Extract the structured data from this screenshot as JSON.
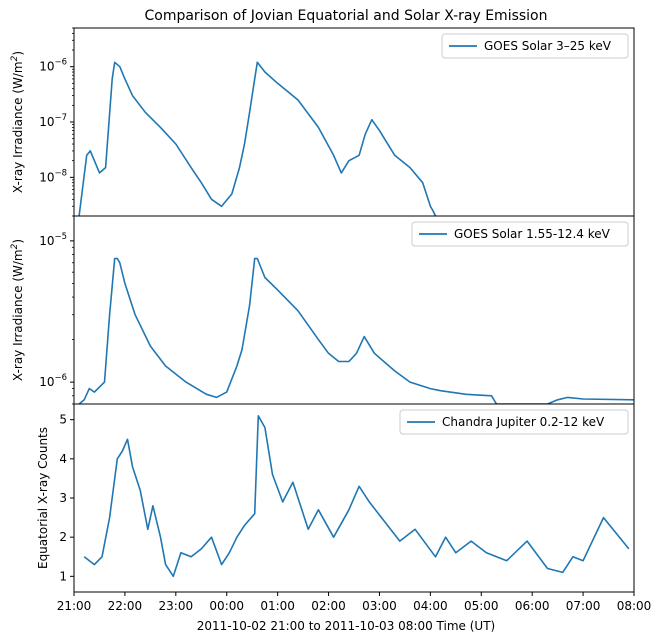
{
  "title": "Comparison of Jovian Equatorial and Solar X-ray Emission",
  "x_axis_label": "2011-10-02 21:00 to 2011-10-03 08:00 Time (UT)",
  "x_tick_labels": [
    "21:00",
    "22:00",
    "23:00",
    "00:00",
    "01:00",
    "02:00",
    "03:00",
    "04:00",
    "05:00",
    "06:00",
    "07:00",
    "08:00"
  ],
  "line_color": "#1f77b4",
  "chart_data": [
    {
      "type": "line",
      "panel": "top",
      "series_name": "GOES Solar 3–25 keV",
      "ylabel_text": "X-ray Irradiance (W/m",
      "ylabel_sup": "2",
      "ylabel_close": ")",
      "yscale": "log",
      "ylim": [
        2e-09,
        5e-06
      ],
      "yticks": [
        1e-08,
        1e-07,
        1e-06
      ],
      "ytick_labels": [
        {
          "base": "10",
          "exp": "−8"
        },
        {
          "base": "10",
          "exp": "−7"
        },
        {
          "base": "10",
          "exp": "−6"
        }
      ],
      "x_hours": [
        0.1,
        0.25,
        0.32,
        0.4,
        0.5,
        0.62,
        0.75,
        0.8,
        0.9,
        1.0,
        1.15,
        1.4,
        1.7,
        2.0,
        2.3,
        2.5,
        2.7,
        2.9,
        3.1,
        3.25,
        3.35,
        3.45,
        3.55,
        3.6,
        3.75,
        4.0,
        4.4,
        4.8,
        5.1,
        5.25,
        5.4,
        5.6,
        5.72,
        5.85,
        6.0,
        6.3,
        6.6,
        6.85,
        7.0,
        7.05,
        7.1
      ],
      "values": [
        2e-09,
        2.5e-08,
        3e-08,
        2e-08,
        1.2e-08,
        1.5e-08,
        6e-07,
        1.2e-06,
        1e-06,
        6e-07,
        3e-07,
        1.5e-07,
        8e-08,
        4e-08,
        1.5e-08,
        8e-09,
        4e-09,
        3e-09,
        5e-09,
        1.5e-08,
        4e-08,
        1.5e-07,
        6e-07,
        1.2e-06,
        8e-07,
        5e-07,
        2.5e-07,
        8e-08,
        2.5e-08,
        1.2e-08,
        2e-08,
        2.5e-08,
        6e-08,
        1.1e-07,
        7e-08,
        2.5e-08,
        1.5e-08,
        8e-09,
        3e-09,
        2.5e-09,
        2e-09
      ]
    },
    {
      "type": "line",
      "panel": "middle",
      "series_name": "GOES Solar 1.55-12.4 keV",
      "ylabel_text": "X-ray Irradiance (W/m",
      "ylabel_sup": "2",
      "ylabel_close": ")",
      "yscale": "log",
      "ylim": [
        7e-07,
        1.5e-05
      ],
      "yticks": [
        1e-06,
        1e-05
      ],
      "ytick_labels": [
        {
          "base": "10",
          "exp": "−6"
        },
        {
          "base": "10",
          "exp": "−5"
        }
      ],
      "x_hours": [
        0.1,
        0.2,
        0.3,
        0.4,
        0.6,
        0.7,
        0.8,
        0.85,
        0.9,
        1.0,
        1.2,
        1.5,
        1.8,
        2.2,
        2.6,
        2.8,
        3.0,
        3.2,
        3.3,
        3.45,
        3.55,
        3.6,
        3.75,
        4.0,
        4.4,
        4.8,
        5.0,
        5.2,
        5.4,
        5.55,
        5.7,
        5.9,
        6.3,
        6.6,
        7.0,
        7.2,
        7.7,
        8.2,
        8.3,
        8.5,
        9.3,
        9.5,
        9.7,
        10.0,
        11.0
      ],
      "values": [
        7e-07,
        7.5e-07,
        9e-07,
        8.5e-07,
        1e-06,
        3e-06,
        7.5e-06,
        7.5e-06,
        7e-06,
        5e-06,
        3e-06,
        1.8e-06,
        1.3e-06,
        1e-06,
        8.2e-07,
        7.8e-07,
        8.5e-07,
        1.3e-06,
        1.7e-06,
        3.5e-06,
        7.5e-06,
        7.5e-06,
        5.5e-06,
        4.5e-06,
        3.2e-06,
        2e-06,
        1.6e-06,
        1.4e-06,
        1.4e-06,
        1.6e-06,
        2.1e-06,
        1.6e-06,
        1.2e-06,
        1e-06,
        9e-07,
        8.7e-07,
        8.2e-07,
        8e-07,
        7e-07,
        7e-07,
        7e-07,
        7.5e-07,
        7.8e-07,
        7.6e-07,
        7.5e-07
      ]
    },
    {
      "type": "line",
      "panel": "bottom",
      "series_name": "Chandra Jupiter 0.2-12 keV",
      "ylabel_text": "Equatorial X-ray Counts",
      "yscale": "linear",
      "ylim": [
        0.6,
        5.4
      ],
      "yticks": [
        1,
        2,
        3,
        4,
        5
      ],
      "ytick_labels": [
        "1",
        "2",
        "3",
        "4",
        "5"
      ],
      "x_hours": [
        0.2,
        0.4,
        0.55,
        0.7,
        0.85,
        0.95,
        1.05,
        1.15,
        1.3,
        1.45,
        1.55,
        1.7,
        1.8,
        1.95,
        2.1,
        2.3,
        2.5,
        2.7,
        2.9,
        3.05,
        3.2,
        3.35,
        3.55,
        3.62,
        3.75,
        3.9,
        4.1,
        4.3,
        4.6,
        4.8,
        5.1,
        5.4,
        5.6,
        5.8,
        6.1,
        6.4,
        6.7,
        7.1,
        7.3,
        7.5,
        7.8,
        8.1,
        8.5,
        8.9,
        9.3,
        9.6,
        9.8,
        10.0,
        10.4,
        10.9
      ],
      "values": [
        1.5,
        1.3,
        1.5,
        2.5,
        4.0,
        4.2,
        4.5,
        3.8,
        3.2,
        2.2,
        2.8,
        2.0,
        1.3,
        1.0,
        1.6,
        1.5,
        1.7,
        2.0,
        1.3,
        1.6,
        2.0,
        2.3,
        2.6,
        5.1,
        4.8,
        3.6,
        2.9,
        3.4,
        2.2,
        2.7,
        2.0,
        2.7,
        3.3,
        2.9,
        2.4,
        1.9,
        2.2,
        1.5,
        2.0,
        1.6,
        1.9,
        1.6,
        1.4,
        1.9,
        1.2,
        1.1,
        1.5,
        1.4,
        2.5,
        1.7
      ]
    }
  ]
}
